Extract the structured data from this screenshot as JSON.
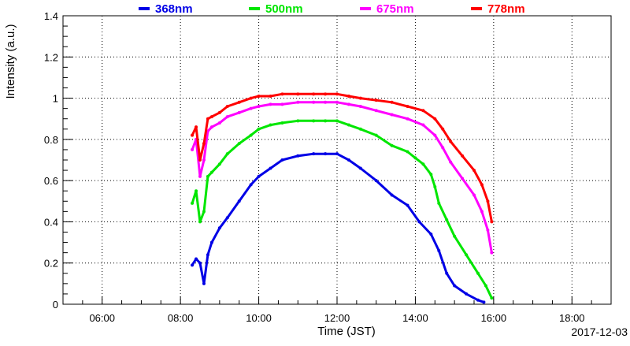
{
  "chart_data": {
    "type": "scatter",
    "title": "",
    "xlabel": "Time (JST)",
    "ylabel": "Intensity (a.u.)",
    "date_label": "2017-12-03",
    "x_unit": "hours (JST)",
    "xlim": [
      5.0,
      19.0
    ],
    "ylim": [
      0,
      1.4
    ],
    "x_ticks": [
      6,
      8,
      10,
      12,
      14,
      16,
      18
    ],
    "x_tick_labels": [
      "06:00",
      "08:00",
      "10:00",
      "12:00",
      "14:00",
      "16:00",
      "18:00"
    ],
    "y_ticks": [
      0,
      0.2,
      0.4,
      0.6,
      0.8,
      1,
      1.2,
      1.4
    ],
    "y_tick_labels": [
      "0",
      "0.2",
      "0.4",
      "0.6",
      "0.8",
      "1",
      "1.2",
      "1.4"
    ],
    "grid": true,
    "legend_position": "top",
    "series": [
      {
        "name": "368nm",
        "color": "#0000e6",
        "x": [
          8.3,
          8.4,
          8.5,
          8.6,
          8.7,
          8.8,
          9.0,
          9.2,
          9.5,
          9.8,
          10.0,
          10.3,
          10.6,
          11.0,
          11.4,
          11.7,
          12.0,
          12.3,
          12.6,
          13.0,
          13.4,
          13.8,
          14.1,
          14.4,
          14.6,
          14.8,
          15.0,
          15.3,
          15.6,
          15.75
        ],
        "y": [
          0.19,
          0.22,
          0.2,
          0.1,
          0.24,
          0.3,
          0.37,
          0.42,
          0.5,
          0.58,
          0.62,
          0.66,
          0.7,
          0.72,
          0.73,
          0.73,
          0.73,
          0.7,
          0.66,
          0.6,
          0.53,
          0.48,
          0.4,
          0.34,
          0.26,
          0.15,
          0.09,
          0.05,
          0.02,
          0.01
        ]
      },
      {
        "name": "500nm",
        "color": "#00e600",
        "x": [
          8.3,
          8.4,
          8.5,
          8.6,
          8.7,
          8.8,
          9.0,
          9.2,
          9.5,
          9.8,
          10.0,
          10.3,
          10.6,
          11.0,
          11.4,
          11.7,
          12.0,
          12.3,
          12.6,
          13.0,
          13.4,
          13.8,
          14.0,
          14.2,
          14.4,
          14.5,
          14.6,
          14.8,
          15.0,
          15.3,
          15.6,
          15.8,
          15.95
        ],
        "y": [
          0.49,
          0.55,
          0.4,
          0.45,
          0.62,
          0.64,
          0.68,
          0.73,
          0.78,
          0.82,
          0.85,
          0.87,
          0.88,
          0.89,
          0.89,
          0.89,
          0.89,
          0.87,
          0.85,
          0.82,
          0.77,
          0.74,
          0.71,
          0.68,
          0.63,
          0.57,
          0.49,
          0.41,
          0.33,
          0.24,
          0.15,
          0.09,
          0.03
        ]
      },
      {
        "name": "675nm",
        "color": "#ff00ff",
        "x": [
          8.3,
          8.4,
          8.5,
          8.6,
          8.7,
          8.8,
          9.0,
          9.2,
          9.5,
          9.8,
          10.0,
          10.3,
          10.6,
          11.0,
          11.4,
          11.7,
          12.0,
          12.3,
          12.6,
          13.0,
          13.4,
          13.8,
          14.2,
          14.5,
          14.7,
          14.9,
          15.2,
          15.5,
          15.7,
          15.85,
          15.95
        ],
        "y": [
          0.75,
          0.8,
          0.62,
          0.7,
          0.84,
          0.86,
          0.88,
          0.91,
          0.93,
          0.95,
          0.96,
          0.97,
          0.97,
          0.98,
          0.98,
          0.98,
          0.98,
          0.97,
          0.96,
          0.94,
          0.92,
          0.9,
          0.87,
          0.82,
          0.76,
          0.69,
          0.61,
          0.53,
          0.45,
          0.36,
          0.25
        ]
      },
      {
        "name": "778nm",
        "color": "#ff0000",
        "x": [
          8.3,
          8.4,
          8.5,
          8.6,
          8.7,
          8.8,
          9.0,
          9.2,
          9.5,
          9.8,
          10.0,
          10.3,
          10.6,
          11.0,
          11.4,
          11.7,
          12.0,
          12.3,
          12.6,
          13.0,
          13.4,
          13.8,
          14.2,
          14.5,
          14.7,
          14.9,
          15.2,
          15.5,
          15.7,
          15.85,
          15.95
        ],
        "y": [
          0.82,
          0.86,
          0.7,
          0.78,
          0.9,
          0.91,
          0.93,
          0.96,
          0.98,
          1.0,
          1.01,
          1.01,
          1.02,
          1.02,
          1.02,
          1.02,
          1.02,
          1.01,
          1.0,
          0.99,
          0.98,
          0.96,
          0.94,
          0.9,
          0.85,
          0.79,
          0.72,
          0.65,
          0.58,
          0.5,
          0.4
        ]
      }
    ]
  }
}
